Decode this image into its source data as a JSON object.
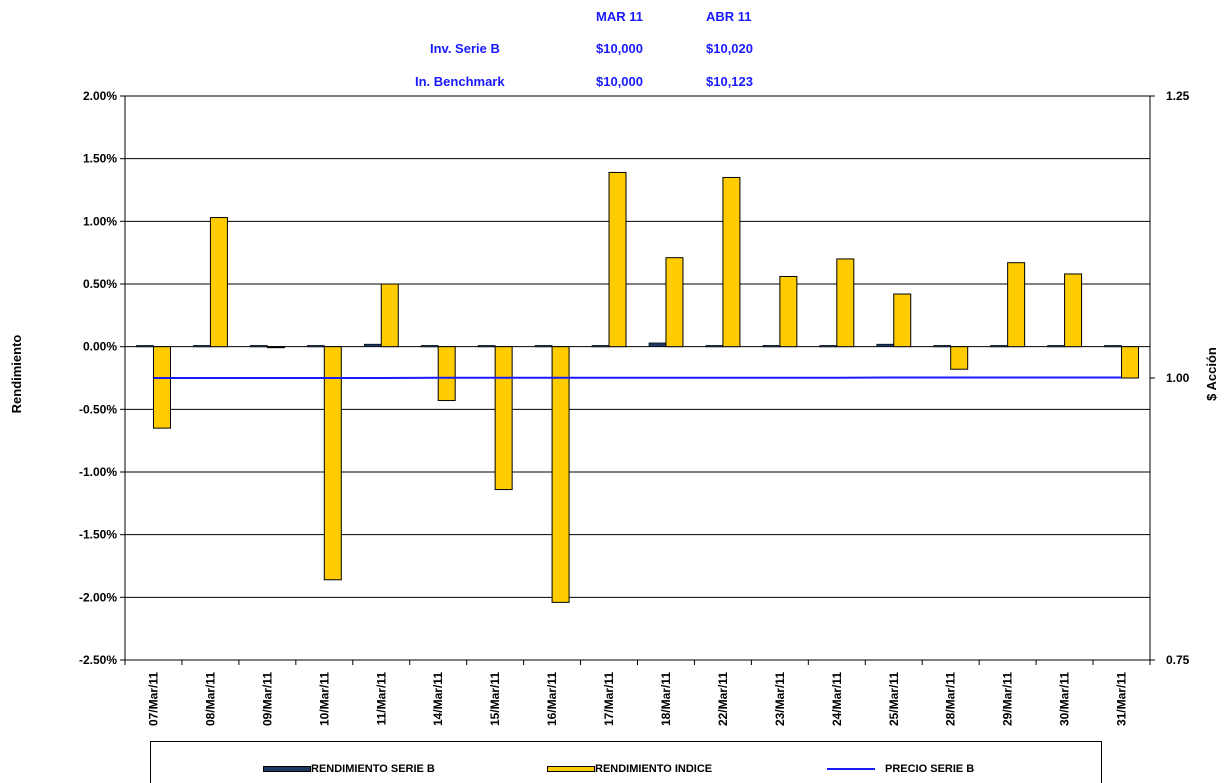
{
  "header_table": {
    "col1": "MAR 11",
    "col2": "ABR 11",
    "rows": [
      {
        "label": "Inv. Serie B",
        "v1": "$10,000",
        "v2": "$10,020"
      },
      {
        "label": "In. Benchmark",
        "v1": "$10,000",
        "v2": "$10,123"
      }
    ]
  },
  "legend": {
    "serie_b": "RENDIMIENTO SERIE B",
    "indice": "RENDIMIENTO INDICE",
    "precio": "PRECIO SERIE B"
  },
  "colors": {
    "serie_b": "#1f3864",
    "indice": "#ffcc00",
    "precio": "#1a1aff",
    "table_text": "#1a1aff"
  },
  "chart_data": {
    "type": "bar",
    "ylabel": "Rendimiento",
    "y2label": "$ Acción",
    "ylim": [
      -0.025,
      0.02
    ],
    "y2lim": [
      0.75,
      1.25
    ],
    "yticks": [
      "2.00%",
      "1.50%",
      "1.00%",
      "0.50%",
      "0.00%",
      "-0.50%",
      "-1.00%",
      "-1.50%",
      "-2.00%",
      "-2.50%"
    ],
    "y2ticks": [
      "1.25",
      "1.00",
      "0.75"
    ],
    "grid": true,
    "legend_position": "bottom",
    "categories": [
      "07/Mar/11",
      "08/Mar/11",
      "09/Mar/11",
      "10/Mar/11",
      "11/Mar/11",
      "14/Mar/11",
      "15/Mar/11",
      "16/Mar/11",
      "17/Mar/11",
      "18/Mar/11",
      "22/Mar/11",
      "23/Mar/11",
      "24/Mar/11",
      "25/Mar/11",
      "28/Mar/11",
      "29/Mar/11",
      "30/Mar/11",
      "31/Mar/11"
    ],
    "series": [
      {
        "name": "RENDIMIENTO SERIE B",
        "type": "bar",
        "axis": "left",
        "values": [
          0.0001,
          0.0001,
          0.0001,
          0.0001,
          0.0002,
          0.0001,
          0.0001,
          0.0001,
          0.0001,
          0.0003,
          0.0001,
          0.0001,
          0.0001,
          0.0002,
          0.0001,
          0.0001,
          0.0001,
          0.0001
        ]
      },
      {
        "name": "RENDIMIENTO INDICE",
        "type": "bar",
        "axis": "left",
        "values": [
          -0.0065,
          0.0103,
          0.0,
          -0.0186,
          0.005,
          -0.0043,
          -0.0114,
          -0.0204,
          0.0139,
          0.0071,
          0.0135,
          0.0056,
          0.007,
          0.0042,
          -0.0018,
          0.0067,
          0.0058,
          -0.0025
        ]
      },
      {
        "name": "PRECIO SERIE B",
        "type": "line",
        "axis": "right",
        "values": [
          1.0,
          1.0,
          1.0,
          1.0,
          1.0,
          1.0002,
          1.0002,
          1.0002,
          1.0002,
          1.0002,
          1.0002,
          1.0002,
          1.0002,
          1.0004,
          1.0004,
          1.0004,
          1.0004,
          1.0004
        ]
      }
    ]
  }
}
